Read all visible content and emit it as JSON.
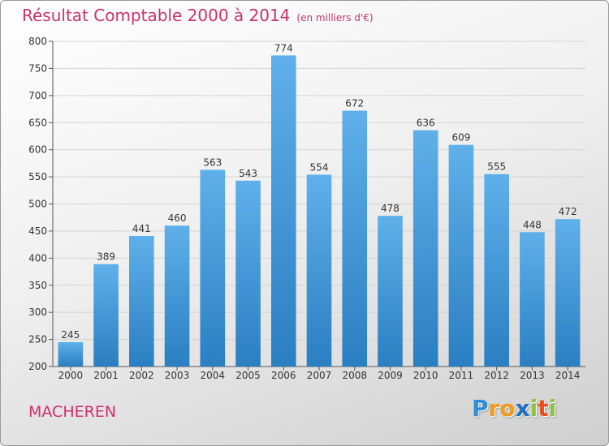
{
  "title": "Résultat Comptable 2000 à 2014",
  "subtitle": "(en milliers d'€)",
  "place": "MACHEREN",
  "logo": {
    "letters": [
      "P",
      "r",
      "o",
      "x",
      "i",
      "t",
      "i"
    ],
    "colors": [
      "#2e8fd8",
      "#f29a1f",
      "#f29a1f",
      "#1f6fc4",
      "#8bc53f",
      "#e94e1b",
      "#8bc53f"
    ]
  },
  "colors": {
    "title": "#c8336b",
    "bar_top": "#5fb0ea",
    "bar_bottom": "#2a7fc2",
    "grid": "#d4d4d4",
    "axis_text": "#333333"
  },
  "chart_data": {
    "type": "bar",
    "title": "Résultat Comptable 2000 à 2014",
    "xlabel": "",
    "ylabel": "",
    "categories": [
      "2000",
      "2001",
      "2002",
      "2003",
      "2004",
      "2005",
      "2006",
      "2007",
      "2008",
      "2009",
      "2010",
      "2011",
      "2012",
      "2013",
      "2014"
    ],
    "values": [
      245,
      389,
      441,
      460,
      563,
      543,
      774,
      554,
      672,
      478,
      636,
      609,
      555,
      448,
      472
    ],
    "ylim": [
      200,
      800
    ],
    "yticks": [
      200,
      250,
      300,
      350,
      400,
      450,
      500,
      550,
      600,
      650,
      700,
      750,
      800
    ],
    "grid": true
  }
}
